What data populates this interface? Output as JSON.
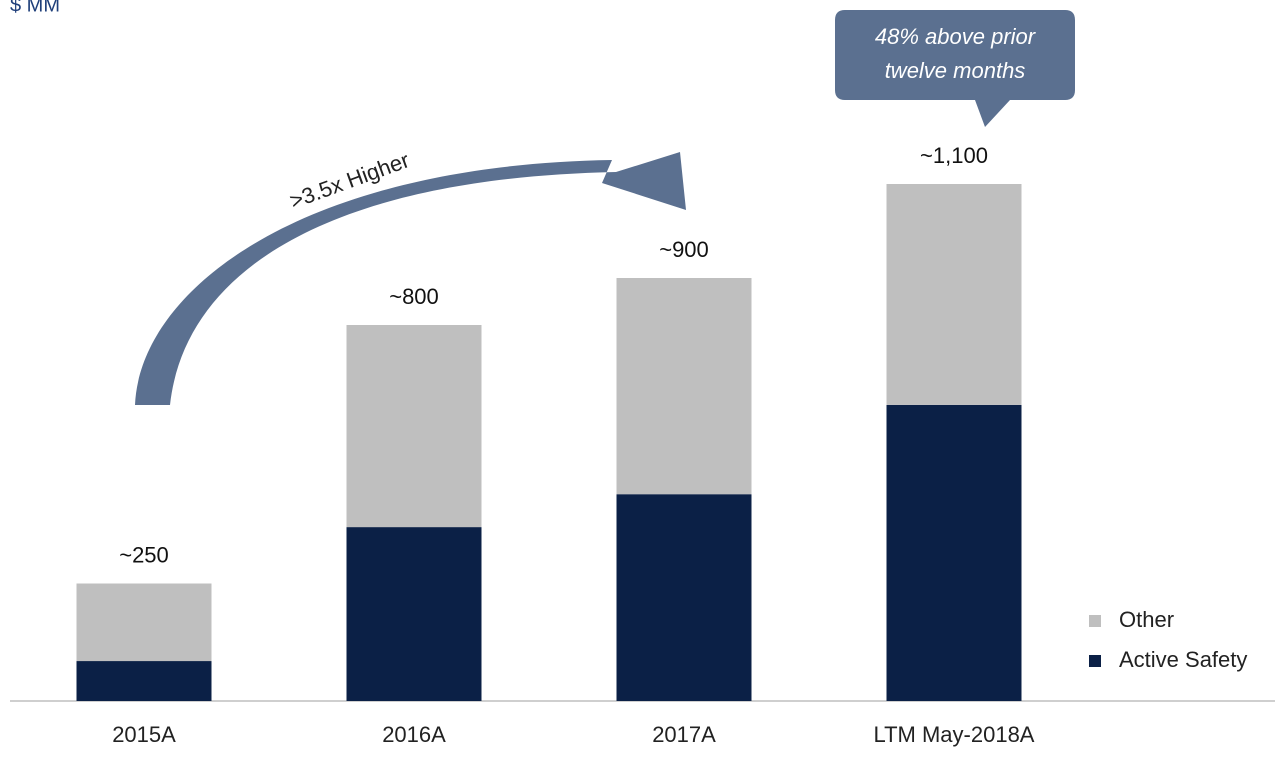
{
  "chart_data": {
    "type": "stacked_bar",
    "subtitle": "$ MM",
    "categories": [
      "2015A",
      "2016A",
      "2017A",
      "LTM May-2018A"
    ],
    "series": [
      {
        "name": "Active Safety",
        "color": "#0b2046",
        "values": [
          85,
          370,
          440,
          630
        ]
      },
      {
        "name": "Other",
        "color": "#bfbfbf",
        "values": [
          165,
          430,
          460,
          470
        ]
      }
    ],
    "totals": [
      250,
      800,
      900,
      1100
    ],
    "total_labels": [
      "~250",
      "~800",
      "~900",
      "~1,100"
    ],
    "arrow_annotation": ">3.5x Higher",
    "callout": [
      "48% above prior",
      "twelve months"
    ],
    "legend": "right"
  }
}
